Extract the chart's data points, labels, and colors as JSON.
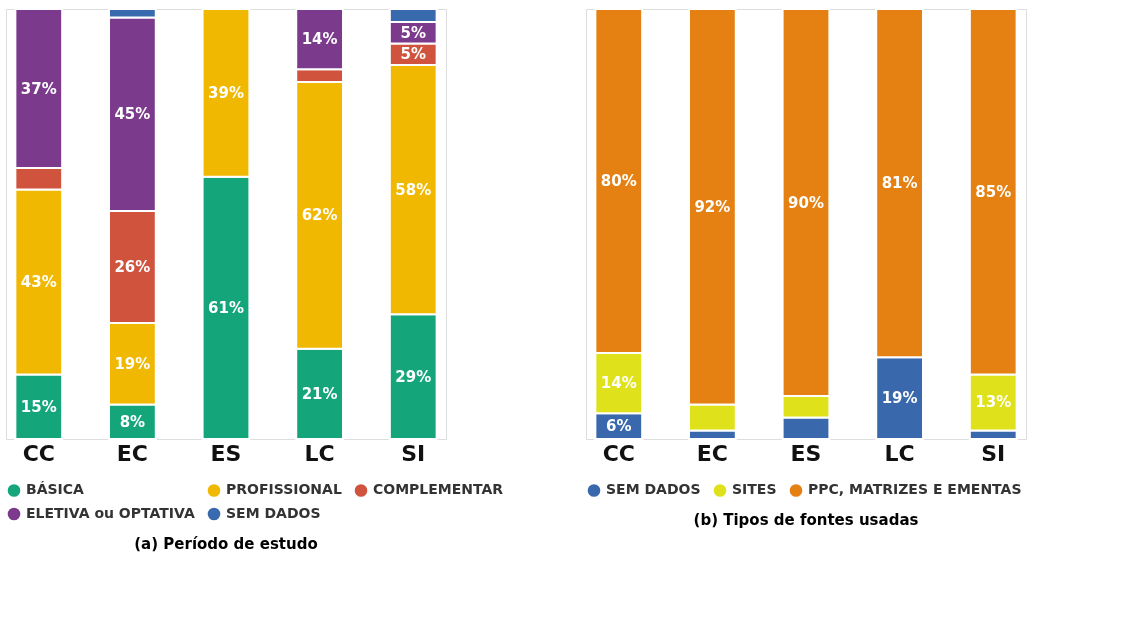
{
  "chart_data": [
    {
      "type": "bar",
      "title": "(a) Período de estudo",
      "stacked": true,
      "legend": "bottom",
      "tick_labels": "x",
      "categories": [
        "CC",
        "EC",
        "ES",
        "LC",
        "SI"
      ],
      "series": [
        {
          "name": "BÁSICA",
          "color": "#14a57a",
          "values": [
            15,
            8,
            61,
            21,
            29
          ],
          "value_labels": [
            "15%",
            "8%",
            "61%",
            "21%",
            "29%"
          ]
        },
        {
          "name": "PROFISSIONAL",
          "color": "#f0b800",
          "values": [
            43,
            19,
            39,
            62,
            58
          ],
          "value_labels": [
            "43%",
            "19%",
            "39%",
            "62%",
            "58%"
          ]
        },
        {
          "name": "COMPLEMENTAR",
          "color": "#d0533e",
          "values": [
            5,
            26,
            null,
            3,
            5
          ],
          "value_labels": [
            null,
            "26%",
            null,
            null,
            "5%"
          ]
        },
        {
          "name": "ELETIVA ou OPTATIVA",
          "color": "#7b3a8c",
          "values": [
            37,
            45,
            null,
            14,
            5
          ],
          "value_labels": [
            "37%",
            "45%",
            null,
            "14%",
            "5%"
          ]
        },
        {
          "name": "SEM DADOS",
          "color": "#3a6aae",
          "values": [
            null,
            2,
            null,
            null,
            3
          ],
          "value_labels": [
            null,
            null,
            null,
            null,
            null
          ]
        }
      ]
    },
    {
      "type": "bar",
      "title": "(b) Tipos de fontes usadas",
      "stacked": true,
      "legend": "bottom",
      "tick_labels": "x",
      "categories": [
        "CC",
        "EC",
        "ES",
        "LC",
        "SI"
      ],
      "series": [
        {
          "name": "SEM DADOS",
          "color": "#3a68ad",
          "values": [
            6,
            2,
            5,
            19,
            2
          ],
          "value_labels": [
            "6%",
            null,
            null,
            "19%",
            null
          ]
        },
        {
          "name": "SITES",
          "color": "#dfe21a",
          "values": [
            14,
            6,
            5,
            null,
            13
          ],
          "value_labels": [
            "14%",
            null,
            null,
            null,
            "13%"
          ]
        },
        {
          "name": "PPC, MATRIZES E EMENTAS",
          "color": "#e58012",
          "values": [
            80,
            92,
            90,
            81,
            85
          ],
          "value_labels": [
            "80%",
            "92%",
            "90%",
            "81%",
            "85%"
          ]
        }
      ]
    }
  ]
}
